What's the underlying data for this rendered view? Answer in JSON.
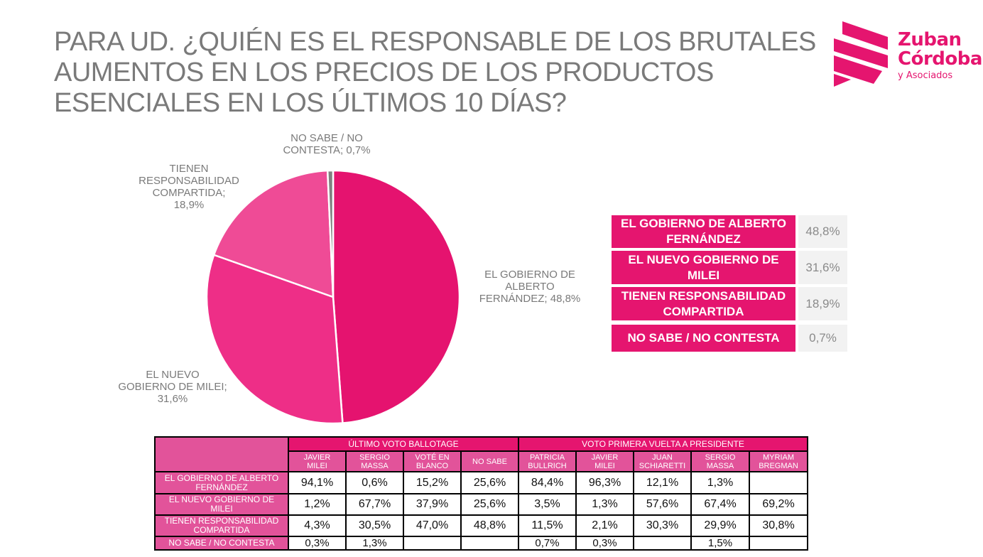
{
  "title_lines": [
    "PARA UD. ¿QUIÉN ES EL RESPONSABLE DE LOS BRUTALES",
    "AUMENTOS EN LOS PRECIOS DE LOS PRODUCTOS",
    "ESENCIALES EN LOS ÚLTIMOS 10 DÍAS?"
  ],
  "logo": {
    "line1": "Zuban",
    "line2": "Córdoba",
    "line3": "y Asociados",
    "color": "#E5156F"
  },
  "chart_data": {
    "type": "pie",
    "title": "PARA UD. ¿QUIÉN ES EL RESPONSABLE DE LOS BRUTALES AUMENTOS EN LOS PRECIOS DE LOS PRODUCTOS ESENCIALES EN LOS ÚLTIMOS 10 DÍAS?",
    "start": "12 o'clock, clockwise",
    "slices": [
      {
        "name": "EL GOBIERNO DE ALBERTO FERNÁNDEZ",
        "value": 48.8,
        "color": "#E5136F",
        "label_lines": [
          "EL GOBIERNO DE",
          "ALBERTO",
          "FERNÁNDEZ; 48,8%"
        ]
      },
      {
        "name": "EL NUEVO GOBIERNO DE MILEI",
        "value": 31.6,
        "color": "#EE2E87",
        "label_lines": [
          "EL NUEVO",
          "GOBIERNO DE MILEI;",
          "31,6%"
        ]
      },
      {
        "name": "TIENEN RESPONSABILIDAD COMPARTIDA",
        "value": 18.9,
        "color": "#EF4B96",
        "label_lines": [
          "TIENEN",
          "RESPONSABILIDAD",
          "COMPARTIDA;",
          "18,9%"
        ]
      },
      {
        "name": "NO SABE / NO CONTESTA",
        "value": 0.7,
        "color": "#808080",
        "label_lines": [
          "NO SABE / NO",
          "CONTESTA; 0,7%"
        ]
      }
    ]
  },
  "legend": [
    {
      "label": "EL GOBIERNO DE ALBERTO FERNÁNDEZ",
      "value": "48,8%"
    },
    {
      "label": "EL NUEVO GOBIERNO DE MILEI",
      "value": "31,6%"
    },
    {
      "label": "TIENEN RESPONSABILIDAD COMPARTIDA",
      "value": "18,9%"
    },
    {
      "label": "NO SABE / NO CONTESTA",
      "value": "0,7%"
    }
  ],
  "crosstab": {
    "groups": [
      {
        "label": "ÚLTIMO VOTO BALLOTAGE",
        "span": 4
      },
      {
        "label": "VOTO PRIMERA VUELTA A PRESIDENTE",
        "span": 5
      }
    ],
    "columns": [
      [
        "JAVIER",
        "MILEI"
      ],
      [
        "SERGIO",
        "MASSA"
      ],
      [
        "VOTÉ EN",
        "BLANCO"
      ],
      [
        "NO SABE",
        ""
      ],
      [
        "PATRICIA",
        "BULLRICH"
      ],
      [
        "JAVIER",
        "MILEI"
      ],
      [
        "JUAN",
        "SCHIARETTI"
      ],
      [
        "SERGIO",
        "MASSA"
      ],
      [
        "MYRIAM",
        "BREGMAN"
      ]
    ],
    "rows": [
      {
        "label": [
          "EL GOBIERNO DE ALBERTO",
          "FERNÁNDEZ"
        ],
        "values": [
          "94,1%",
          "0,6%",
          "15,2%",
          "25,6%",
          "84,4%",
          "96,3%",
          "12,1%",
          "1,3%",
          ""
        ]
      },
      {
        "label": [
          "EL NUEVO GOBIERNO DE",
          "MILEI"
        ],
        "values": [
          "1,2%",
          "67,7%",
          "37,9%",
          "25,6%",
          "3,5%",
          "1,3%",
          "57,6%",
          "67,4%",
          "69,2%"
        ]
      },
      {
        "label": [
          "TIENEN RESPONSABILIDAD",
          "COMPARTIDA"
        ],
        "values": [
          "4,3%",
          "30,5%",
          "47,0%",
          "48,8%",
          "11,5%",
          "2,1%",
          "30,3%",
          "29,9%",
          "30,8%"
        ]
      },
      {
        "label": [
          "NO SABE / NO CONTESTA",
          ""
        ],
        "values": [
          "0,3%",
          "1,3%",
          "",
          "",
          "0,7%",
          "0,3%",
          "",
          "1,5%",
          ""
        ]
      }
    ]
  }
}
